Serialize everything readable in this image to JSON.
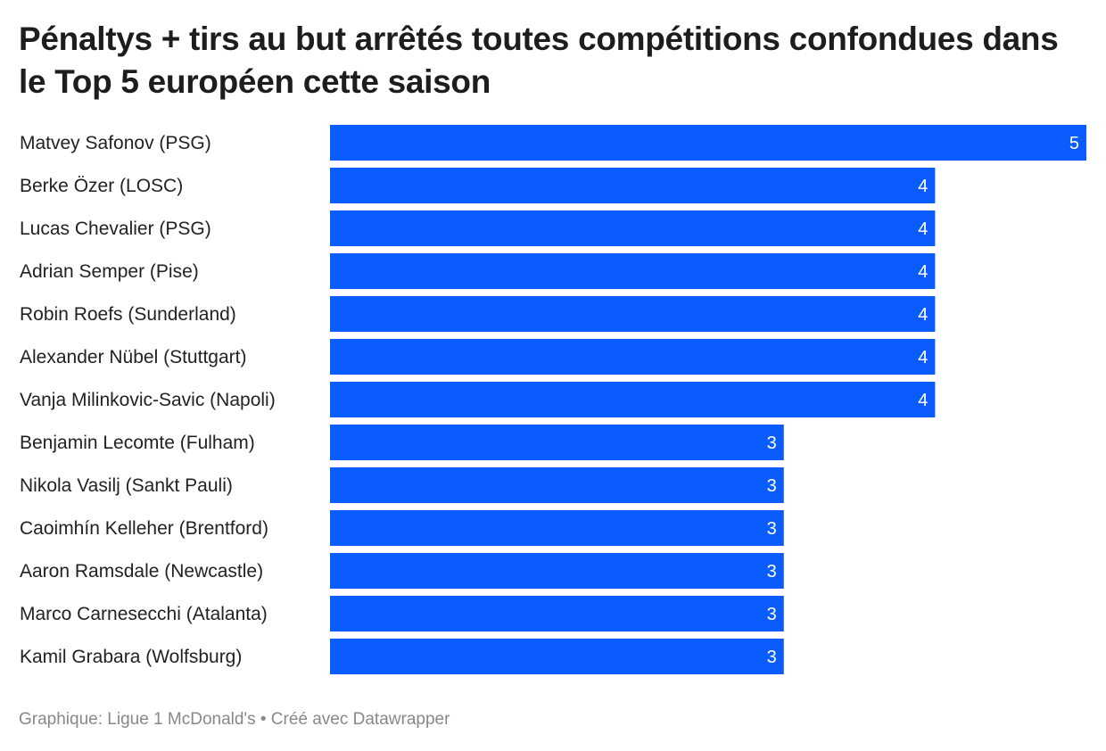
{
  "chart_data": {
    "type": "bar",
    "orientation": "horizontal",
    "title": "Pénaltys + tirs au but arrêtés toutes compétitions confondues dans le Top 5 européen cette saison",
    "categories": [
      "Matvey Safonov (PSG)",
      "Berke Özer (LOSC)",
      "Lucas Chevalier (PSG)",
      "Adrian Semper (Pise)",
      "Robin Roefs (Sunderland)",
      "Alexander Nübel (Stuttgart)",
      "Vanja Milinkovic-Savic (Napoli)",
      "Benjamin Lecomte (Fulham)",
      "Nikola Vasilj (Sankt Pauli)",
      "Caoimhín Kelleher (Brentford)",
      "Aaron Ramsdale (Newcastle)",
      "Marco Carnesecchi (Atalanta)",
      "Kamil Grabara (Wolfsburg)"
    ],
    "values": [
      5,
      4,
      4,
      4,
      4,
      4,
      4,
      3,
      3,
      3,
      3,
      3,
      3
    ],
    "xlim": [
      0,
      5
    ],
    "grid": false,
    "bar_color": "#0a5cff",
    "data_labels": true
  },
  "footer": "Graphique: Ligue 1 McDonald's • Créé avec Datawrapper"
}
